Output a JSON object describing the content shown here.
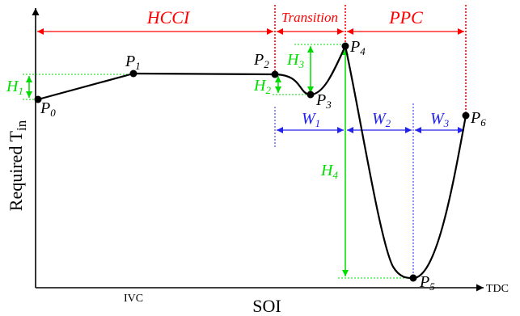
{
  "axes": {
    "y_label": "Required T",
    "y_label_sub": "in",
    "x_label": "SOI",
    "x_tick_ivc": "IVC",
    "x_tick_tdc": "TDC"
  },
  "regions": {
    "hcci": "HCCI",
    "transition": "Transition",
    "ppc": "PPC"
  },
  "points": {
    "p0": {
      "letter": "P",
      "sub": "0"
    },
    "p1": {
      "letter": "P",
      "sub": "1"
    },
    "p2": {
      "letter": "P",
      "sub": "2"
    },
    "p3": {
      "letter": "P",
      "sub": "3"
    },
    "p4": {
      "letter": "P",
      "sub": "4"
    },
    "p5": {
      "letter": "P",
      "sub": "5"
    },
    "p6": {
      "letter": "P",
      "sub": "6"
    }
  },
  "heights": {
    "h1": {
      "letter": "H",
      "sub": "1"
    },
    "h2": {
      "letter": "H",
      "sub": "2"
    },
    "h3": {
      "letter": "H",
      "sub": "3"
    },
    "h4": {
      "letter": "H",
      "sub": "4"
    }
  },
  "widths": {
    "w1": {
      "letter": "W",
      "sub": "1"
    },
    "w2": {
      "letter": "W",
      "sub": "2"
    },
    "w3": {
      "letter": "W",
      "sub": "3"
    }
  },
  "colors": {
    "axis": "#000000",
    "curve": "#000000",
    "region": "#ff0000",
    "height": "#00dd00",
    "width": "#2222ee"
  }
}
